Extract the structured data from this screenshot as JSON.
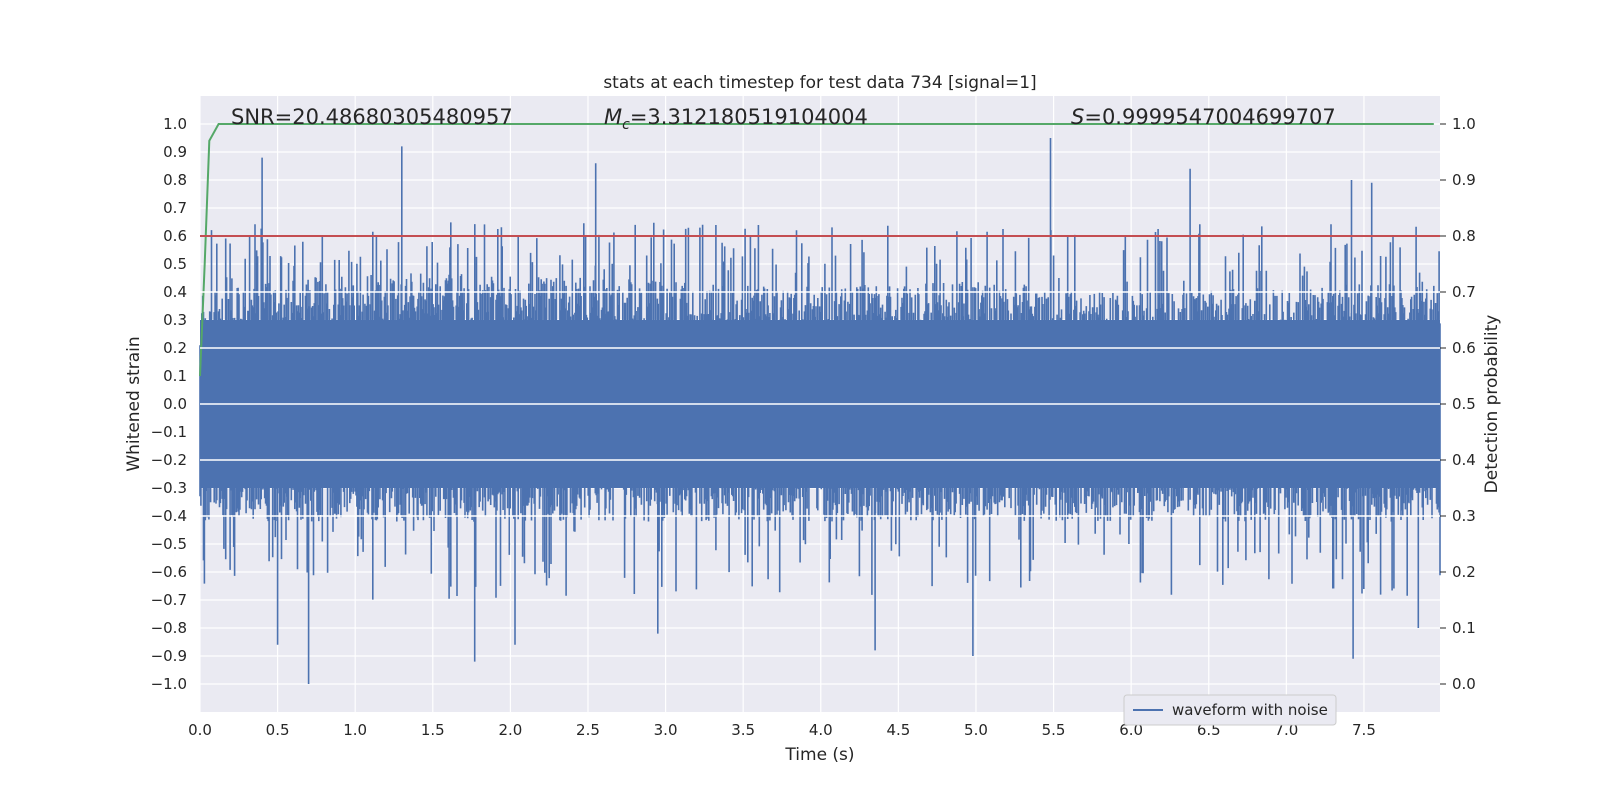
{
  "chart_data": {
    "type": "line",
    "title": "stats at each timestep for test data 734 [signal=1]",
    "xlabel": "Time (s)",
    "ylabel": "Whitened strain",
    "y2label": "Detection probability",
    "xlim": [
      0.0,
      7.99
    ],
    "ylim": [
      -1.1,
      1.1
    ],
    "y2lim": [
      -0.05,
      1.05
    ],
    "xticks": [
      "0.0",
      "0.5",
      "1.0",
      "1.5",
      "2.0",
      "2.5",
      "3.0",
      "3.5",
      "4.0",
      "4.5",
      "5.0",
      "5.5",
      "6.0",
      "6.5",
      "7.0",
      "7.5"
    ],
    "yticks": [
      "1.0",
      "0.9",
      "0.8",
      "0.7",
      "0.6",
      "0.5",
      "0.4",
      "0.3",
      "0.2",
      "0.1",
      "0.0",
      "−0.1",
      "−0.2",
      "−0.3",
      "−0.4",
      "−0.5",
      "−0.6",
      "−0.7",
      "−0.8",
      "−0.9",
      "−1.0"
    ],
    "y2ticks": [
      "1.0",
      "0.9",
      "0.8",
      "0.7",
      "0.6",
      "0.5",
      "0.4",
      "0.3",
      "0.2",
      "0.1",
      "0.0"
    ],
    "grid": true,
    "legend_position": "lower-right",
    "annotations": {
      "snr": "SNR=20.48680305480957",
      "mc_symbol": "M",
      "mc_sub": "c",
      "mc_value": "=3.312180519104004",
      "s_symbol": "S",
      "s_value": "=0.9999547004699707"
    },
    "series": [
      {
        "name": "waveform with noise",
        "axis": "left",
        "color": "#4c72b0",
        "kind": "noise",
        "band_upper": [
          [
            0.0,
            0.38
          ],
          [
            1.0,
            0.45
          ],
          [
            2.0,
            0.44
          ],
          [
            3.0,
            0.42
          ],
          [
            4.0,
            0.4
          ],
          [
            5.0,
            0.42
          ],
          [
            6.0,
            0.38
          ],
          [
            7.0,
            0.4
          ],
          [
            7.99,
            0.42
          ]
        ],
        "band_lower": [
          [
            0.0,
            -0.4
          ],
          [
            1.0,
            -0.4
          ],
          [
            2.0,
            -0.4
          ],
          [
            3.0,
            -0.4
          ],
          [
            4.0,
            -0.4
          ],
          [
            5.0,
            -0.4
          ],
          [
            6.0,
            -0.4
          ],
          [
            7.0,
            -0.4
          ],
          [
            7.99,
            -0.4
          ]
        ],
        "peaks": [
          [
            0.4,
            0.88
          ],
          [
            1.3,
            0.92
          ],
          [
            2.55,
            0.86
          ],
          [
            5.48,
            0.95
          ],
          [
            6.38,
            0.84
          ],
          [
            7.42,
            0.8
          ],
          [
            7.55,
            0.79
          ],
          [
            0.7,
            -1.0
          ],
          [
            1.77,
            -0.92
          ],
          [
            4.98,
            -0.9
          ],
          [
            7.43,
            -0.91
          ],
          [
            0.5,
            -0.86
          ],
          [
            4.35,
            -0.88
          ],
          [
            2.03,
            -0.86
          ],
          [
            2.95,
            -0.82
          ],
          [
            7.85,
            -0.8
          ]
        ]
      },
      {
        "name": "",
        "axis": "right",
        "color": "#55a868",
        "points": [
          [
            0.0,
            0.55
          ],
          [
            0.03,
            0.75
          ],
          [
            0.06,
            0.97
          ],
          [
            0.12,
            1.0
          ],
          [
            7.95,
            1.0
          ]
        ]
      },
      {
        "name": "",
        "axis": "right",
        "color": "#c44e52",
        "points": [
          [
            0.0,
            0.8
          ],
          [
            7.99,
            0.8
          ]
        ]
      }
    ]
  }
}
